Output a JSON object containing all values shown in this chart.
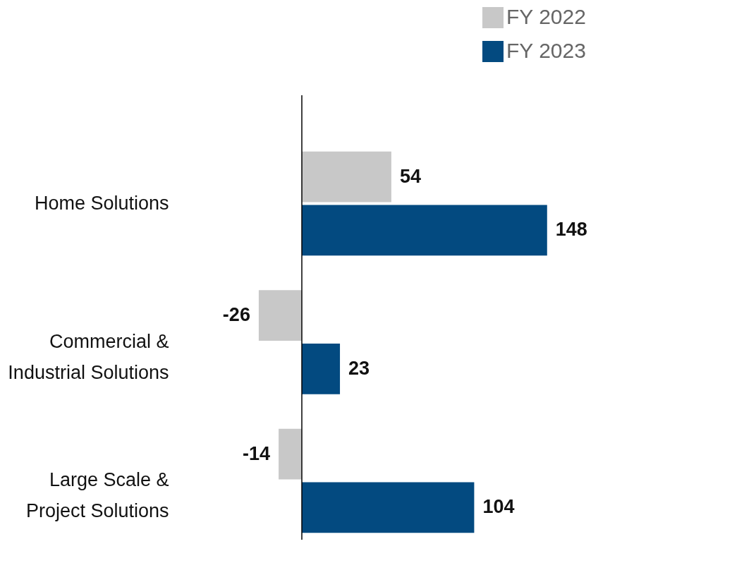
{
  "chart_data": {
    "type": "bar",
    "orientation": "horizontal",
    "categories": [
      "Home Solutions",
      "Commercial &\nIndustrial Solutions",
      "Large Scale &\nProject Solutions"
    ],
    "series": [
      {
        "name": "FY 2022",
        "color": "#c8c8c8",
        "values": [
          54,
          -26,
          -14
        ]
      },
      {
        "name": "FY 2023",
        "color": "#034a80",
        "values": [
          148,
          23,
          104
        ]
      }
    ],
    "data_labels": true,
    "legend": "top right"
  }
}
